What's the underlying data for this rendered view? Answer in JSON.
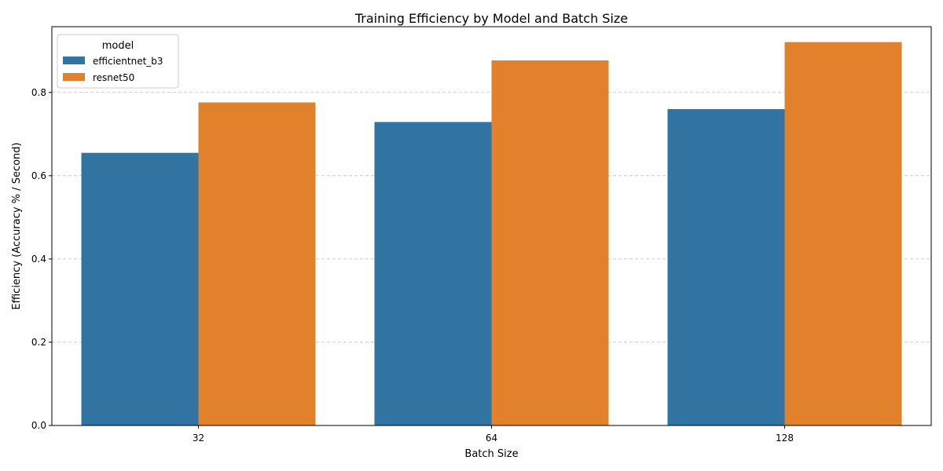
{
  "chart_data": {
    "type": "bar",
    "title": "Training Efficiency by Model and Batch Size",
    "xlabel": "Batch Size",
    "ylabel": "Efficiency (Accuracy % / Second)",
    "categories": [
      "32",
      "64",
      "128"
    ],
    "series": [
      {
        "name": "efficientnet_b3",
        "color": "#3274a1",
        "values": [
          0.655,
          0.729,
          0.76
        ]
      },
      {
        "name": "resnet50",
        "color": "#e1812c",
        "values": [
          0.776,
          0.877,
          0.921
        ]
      }
    ],
    "ylim": [
      0,
      0.958
    ],
    "yticks": [
      0.0,
      0.2,
      0.4,
      0.6,
      0.8
    ],
    "ytick_labels": [
      "0.0",
      "0.2",
      "0.4",
      "0.6",
      "0.8"
    ],
    "legend": {
      "title": "model",
      "placement": "top-left"
    },
    "grid": "y-dashed"
  }
}
